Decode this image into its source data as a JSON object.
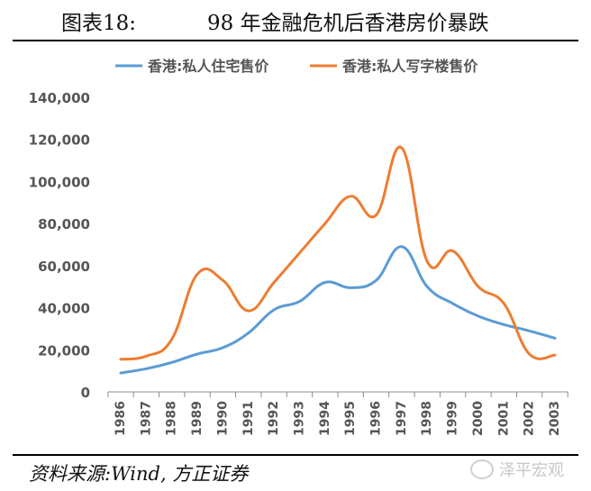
{
  "figure": {
    "label": "图表18:",
    "title": "98 年金融危机后香港房价暴跌",
    "source": "资料来源:Wind, 方正证券",
    "watermark": "泽平宏观"
  },
  "chart_data": {
    "type": "line",
    "title": "98 年金融危机后香港房价暴跌",
    "xlabel": "",
    "ylabel": "",
    "categories": [
      "1986",
      "1987",
      "1988",
      "1989",
      "1990",
      "1991",
      "1992",
      "1993",
      "1994",
      "1995",
      "1996",
      "1997",
      "1998",
      "1999",
      "2000",
      "2001",
      "2002",
      "2003"
    ],
    "ylim": [
      0,
      140000
    ],
    "yticks": [
      0,
      20000,
      40000,
      60000,
      80000,
      100000,
      120000,
      140000
    ],
    "ytick_labels": [
      "0",
      "20,000",
      "40,000",
      "60,000",
      "80,000",
      "100,000",
      "120,000",
      "140,000"
    ],
    "grid": false,
    "legend": "top",
    "series": [
      {
        "name": "香港:私人住宅售价",
        "color": "#5b9bd5",
        "values": [
          9000,
          11000,
          14000,
          18000,
          21000,
          28000,
          39000,
          43000,
          52000,
          49500,
          53000,
          69000,
          50000,
          42000,
          36000,
          32000,
          29000,
          25500
        ]
      },
      {
        "name": "香港:私人写字楼售价",
        "color": "#ed7d31",
        "values": [
          15500,
          17000,
          25000,
          56000,
          53000,
          38500,
          52000,
          66000,
          80000,
          93000,
          84000,
          116000,
          62000,
          67000,
          50000,
          42000,
          18000,
          17500
        ]
      }
    ]
  }
}
